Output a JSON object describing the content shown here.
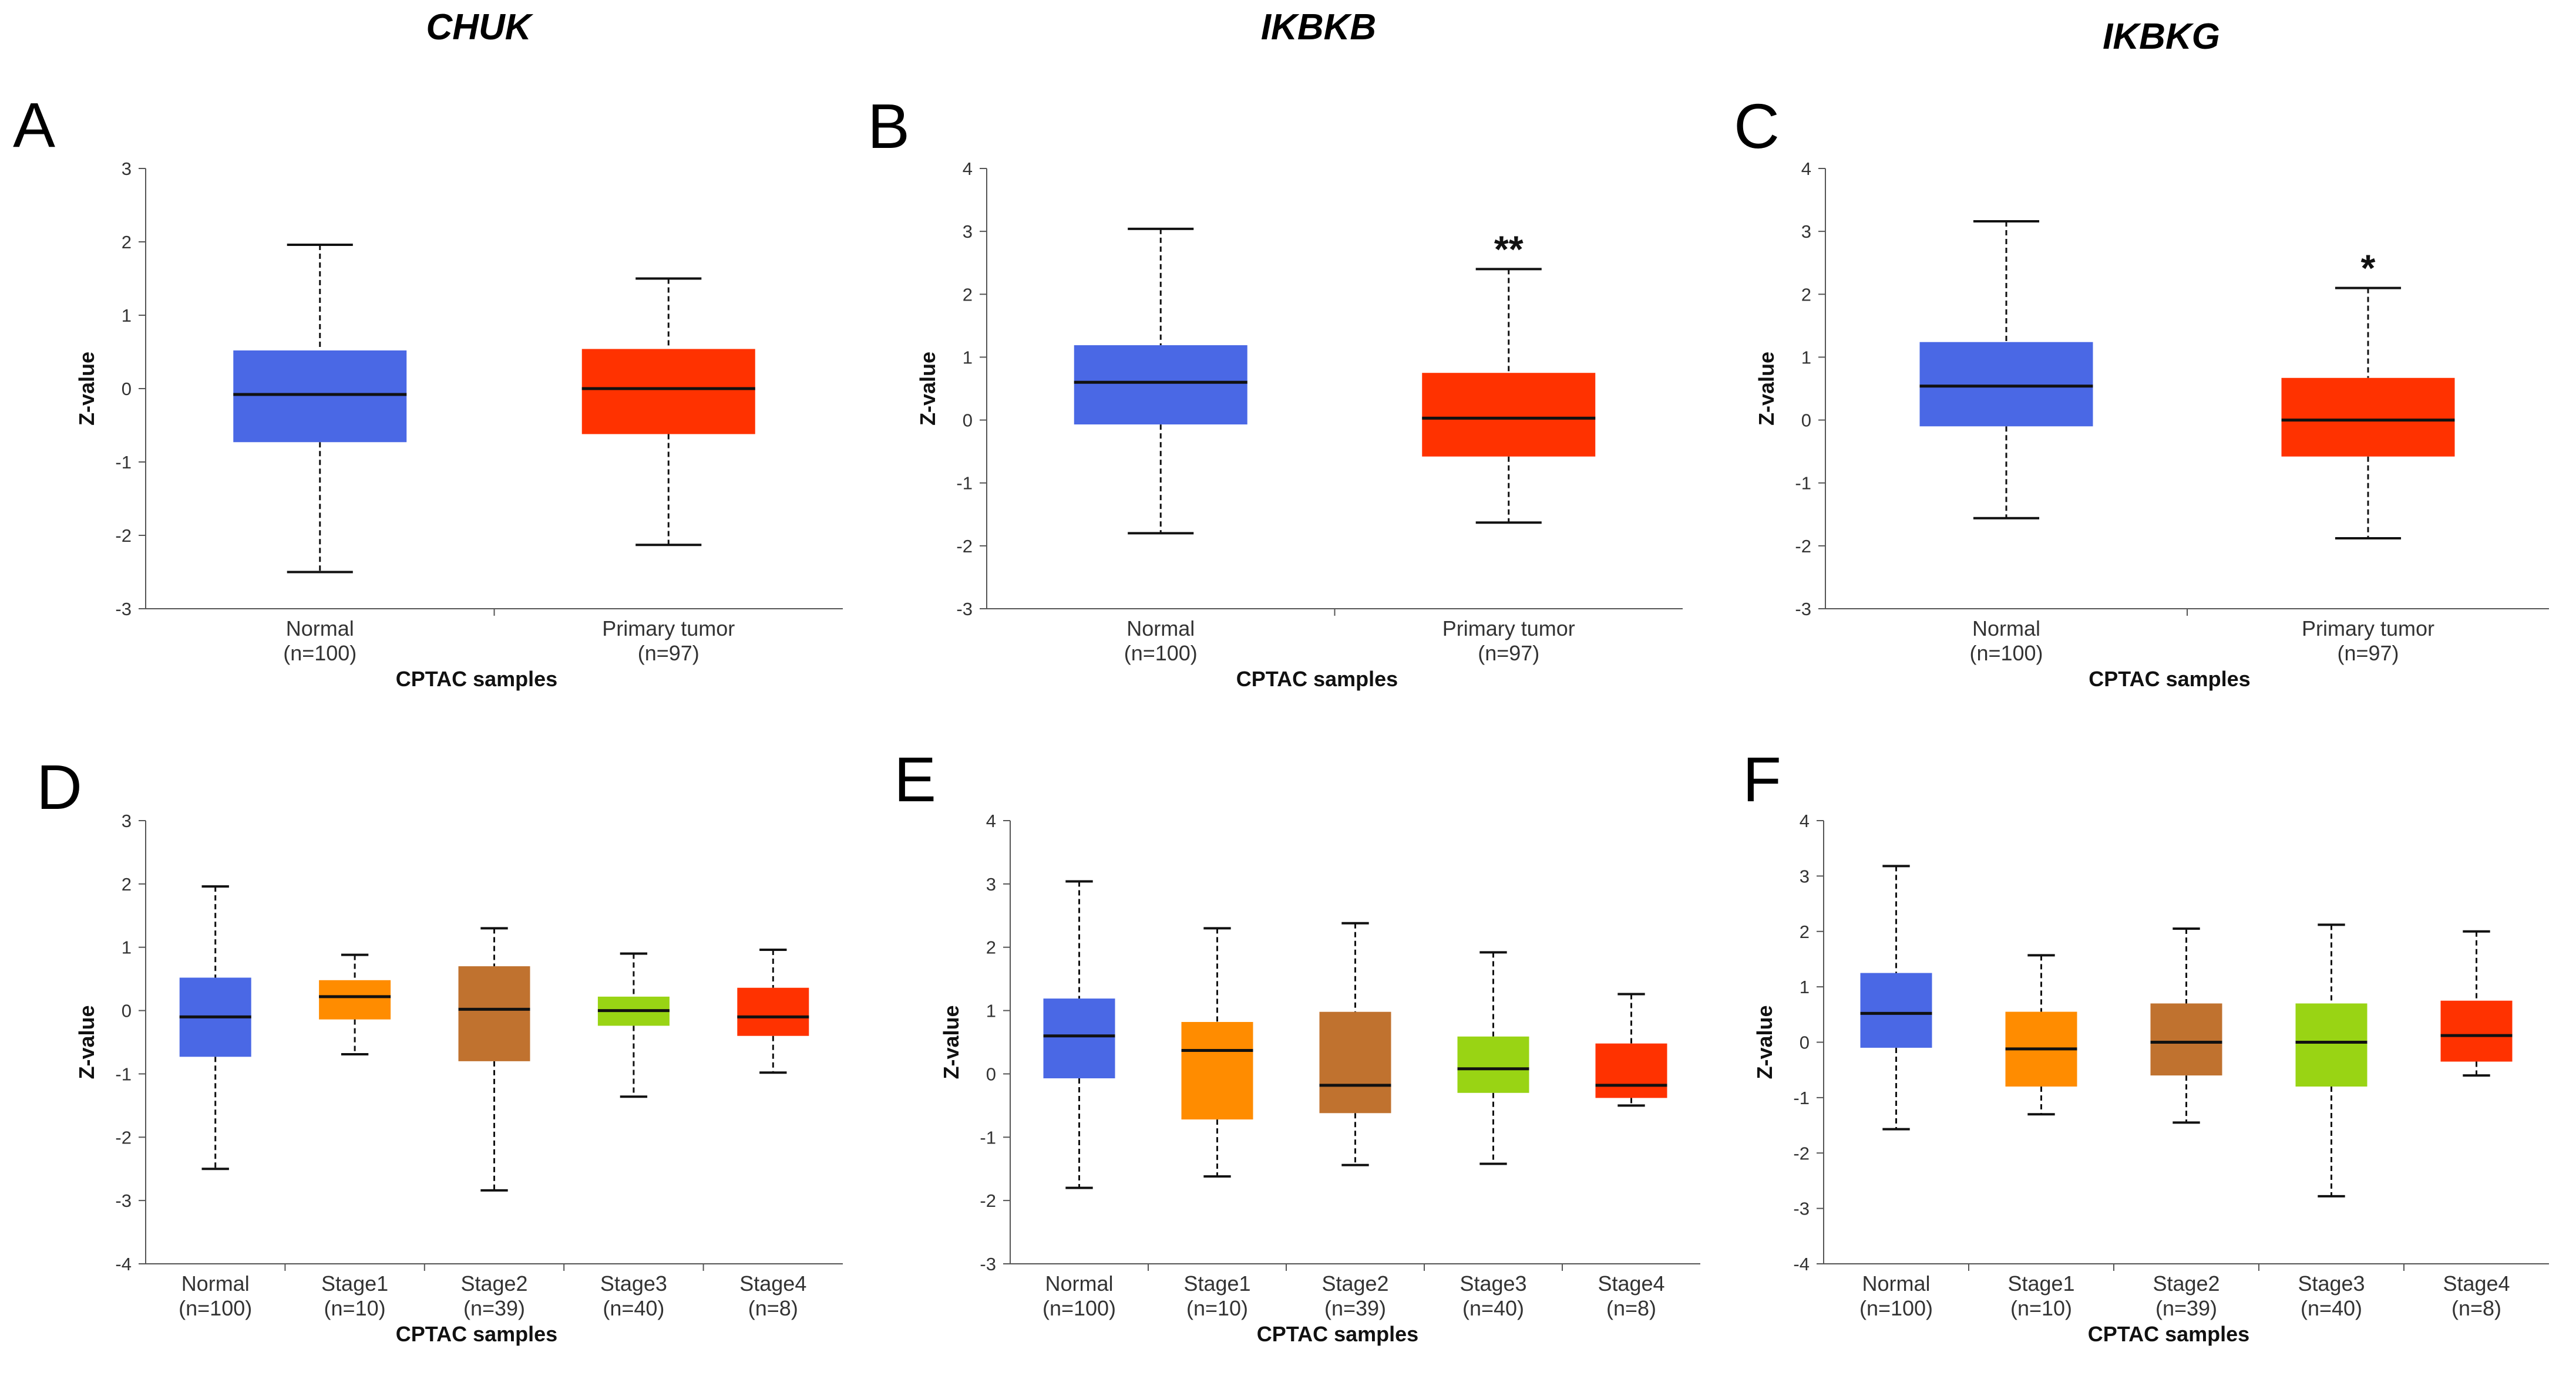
{
  "chart_data": [
    {
      "panel": "A",
      "gene_title": "CHUK",
      "type": "box",
      "xlabel": "CPTAC samples",
      "ylabel": "Z-value",
      "ylim": [
        -3,
        3
      ],
      "yticks": [
        -3,
        -2,
        -1,
        0,
        1,
        2,
        3
      ],
      "categories": [
        "Normal",
        "Primary tumor"
      ],
      "counts": [
        "(n=100)",
        "(n=97)"
      ],
      "boxes": [
        {
          "min": -2.5,
          "q1": -0.73,
          "median": -0.08,
          "q3": 0.52,
          "max": 1.96,
          "color": "#4a68e5"
        },
        {
          "min": -2.13,
          "q1": -0.62,
          "median": 0.0,
          "q3": 0.54,
          "max": 1.5,
          "color": "#ff3200"
        }
      ],
      "significance": [
        "",
        ""
      ]
    },
    {
      "panel": "B",
      "gene_title": "IKBKB",
      "type": "box",
      "xlabel": "CPTAC samples",
      "ylabel": "Z-value",
      "ylim": [
        -3,
        4
      ],
      "yticks": [
        -3,
        -2,
        -1,
        0,
        1,
        2,
        3,
        4
      ],
      "categories": [
        "Normal",
        "Primary tumor"
      ],
      "counts": [
        "(n=100)",
        "(n=97)"
      ],
      "boxes": [
        {
          "min": -1.8,
          "q1": -0.07,
          "median": 0.6,
          "q3": 1.19,
          "max": 3.04,
          "color": "#4a68e5"
        },
        {
          "min": -1.63,
          "q1": -0.58,
          "median": 0.03,
          "q3": 0.75,
          "max": 2.4,
          "color": "#ff3200"
        }
      ],
      "significance": [
        "",
        "**"
      ]
    },
    {
      "panel": "C",
      "gene_title": "IKBKG",
      "type": "box",
      "xlabel": "CPTAC samples",
      "ylabel": "Z-value",
      "ylim": [
        -3,
        4
      ],
      "yticks": [
        -3,
        -2,
        -1,
        0,
        1,
        2,
        3,
        4
      ],
      "categories": [
        "Normal",
        "Primary tumor"
      ],
      "counts": [
        "(n=100)",
        "(n=97)"
      ],
      "boxes": [
        {
          "min": -1.56,
          "q1": -0.1,
          "median": 0.54,
          "q3": 1.24,
          "max": 3.16,
          "color": "#4a68e5"
        },
        {
          "min": -1.88,
          "q1": -0.58,
          "median": 0.0,
          "q3": 0.67,
          "max": 2.1,
          "color": "#ff3200"
        }
      ],
      "significance": [
        "",
        "*"
      ]
    },
    {
      "panel": "D",
      "type": "box",
      "xlabel": "CPTAC samples",
      "ylabel": "Z-value",
      "ylim": [
        -4,
        3
      ],
      "yticks": [
        -4,
        -3,
        -2,
        -1,
        0,
        1,
        2,
        3
      ],
      "categories": [
        "Normal",
        "Stage1",
        "Stage2",
        "Stage3",
        "Stage4"
      ],
      "counts": [
        "(n=100)",
        "(n=10)",
        "(n=39)",
        "(n=40)",
        "(n=8)"
      ],
      "boxes": [
        {
          "min": -2.5,
          "q1": -0.73,
          "median": -0.1,
          "q3": 0.52,
          "max": 1.96,
          "color": "#4a68e5"
        },
        {
          "min": -0.69,
          "q1": -0.14,
          "median": 0.22,
          "q3": 0.48,
          "max": 0.88,
          "color": "#ff8c00"
        },
        {
          "min": -2.84,
          "q1": -0.8,
          "median": 0.02,
          "q3": 0.7,
          "max": 1.3,
          "color": "#c0722f"
        },
        {
          "min": -1.36,
          "q1": -0.24,
          "median": 0.0,
          "q3": 0.22,
          "max": 0.9,
          "color": "#99d414"
        },
        {
          "min": -0.98,
          "q1": -0.4,
          "median": -0.1,
          "q3": 0.36,
          "max": 0.96,
          "color": "#ff3200"
        }
      ],
      "significance": [
        "",
        "",
        "",
        "",
        ""
      ]
    },
    {
      "panel": "E",
      "type": "box",
      "xlabel": "CPTAC samples",
      "ylabel": "Z-value",
      "ylim": [
        -3,
        4
      ],
      "yticks": [
        -3,
        -2,
        -1,
        0,
        1,
        2,
        3,
        4
      ],
      "categories": [
        "Normal",
        "Stage1",
        "Stage2",
        "Stage3",
        "Stage4"
      ],
      "counts": [
        "(n=100)",
        "(n=10)",
        "(n=39)",
        "(n=40)",
        "(n=8)"
      ],
      "boxes": [
        {
          "min": -1.8,
          "q1": -0.07,
          "median": 0.6,
          "q3": 1.19,
          "max": 3.04,
          "color": "#4a68e5"
        },
        {
          "min": -1.62,
          "q1": -0.72,
          "median": 0.37,
          "q3": 0.82,
          "max": 2.3,
          "color": "#ff8c00"
        },
        {
          "min": -1.44,
          "q1": -0.62,
          "median": -0.18,
          "q3": 0.98,
          "max": 2.38,
          "color": "#c0722f"
        },
        {
          "min": -1.42,
          "q1": -0.3,
          "median": 0.08,
          "q3": 0.59,
          "max": 1.92,
          "color": "#99d414"
        },
        {
          "min": -0.5,
          "q1": -0.38,
          "median": -0.18,
          "q3": 0.48,
          "max": 1.26,
          "color": "#ff3200"
        }
      ],
      "significance": [
        "",
        "",
        "",
        "",
        ""
      ]
    },
    {
      "panel": "F",
      "type": "box",
      "xlabel": "CPTAC samples",
      "ylabel": "Z-value",
      "ylim": [
        -4,
        4
      ],
      "yticks": [
        -4,
        -3,
        -2,
        -1,
        0,
        1,
        2,
        3,
        4
      ],
      "categories": [
        "Normal",
        "Stage1",
        "Stage2",
        "Stage3",
        "Stage4"
      ],
      "counts": [
        "(n=100)",
        "(n=10)",
        "(n=39)",
        "(n=40)",
        "(n=8)"
      ],
      "boxes": [
        {
          "min": -1.57,
          "q1": -0.1,
          "median": 0.52,
          "q3": 1.25,
          "max": 3.18,
          "color": "#4a68e5"
        },
        {
          "min": -1.3,
          "q1": -0.8,
          "median": -0.12,
          "q3": 0.55,
          "max": 1.57,
          "color": "#ff8c00"
        },
        {
          "min": -1.45,
          "q1": -0.6,
          "median": 0.0,
          "q3": 0.7,
          "max": 2.05,
          "color": "#c0722f"
        },
        {
          "min": -2.78,
          "q1": -0.8,
          "median": 0.0,
          "q3": 0.7,
          "max": 2.12,
          "color": "#99d414"
        },
        {
          "min": -0.6,
          "q1": -0.35,
          "median": 0.12,
          "q3": 0.75,
          "max": 2.0,
          "color": "#ff3200"
        }
      ],
      "significance": [
        "",
        "",
        "",
        "",
        ""
      ]
    }
  ]
}
